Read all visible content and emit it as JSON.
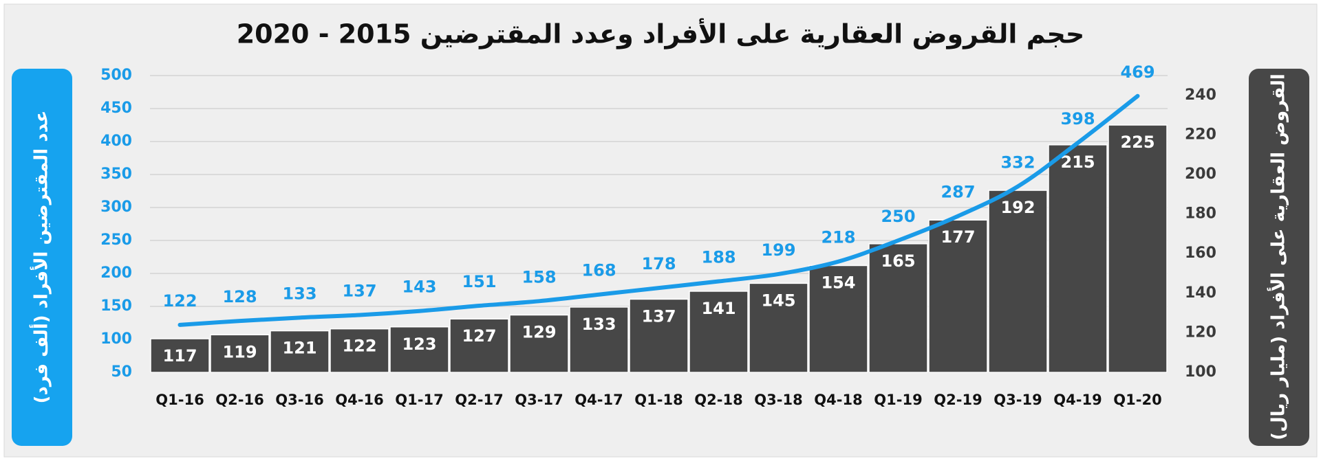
{
  "chart_data": {
    "type": "combo",
    "title": "حجم القروض العقارية على الأفراد وعدد المقترضين 2015 - 2020",
    "y_label": "عدد المقترضين الأفراد (ألف فرد)",
    "y2_label": "القروض العقارية على الأفراد (مليار ريال)",
    "categories": [
      "Q1-16",
      "Q2-16",
      "Q3-16",
      "Q4-16",
      "Q1-17",
      "Q2-17",
      "Q3-17",
      "Q4-17",
      "Q1-18",
      "Q2-18",
      "Q3-18",
      "Q4-18",
      "Q1-19",
      "Q2-19",
      "Q3-19",
      "Q4-19",
      "Q1-20"
    ],
    "series": [
      {
        "type": "bar",
        "axis": "y2",
        "color": "#474747",
        "values": [
          117,
          119,
          121,
          122,
          123,
          127,
          129,
          133,
          137,
          141,
          145,
          154,
          165,
          177,
          192,
          215,
          225
        ]
      },
      {
        "type": "line",
        "color": "#1a9be8",
        "values": [
          122,
          128,
          133,
          137,
          143,
          151,
          158,
          168,
          178,
          188,
          199,
          218,
          250,
          287,
          332,
          398,
          469
        ]
      }
    ],
    "ylim": [
      50,
      500
    ],
    "yticks": [
      50,
      100,
      150,
      200,
      250,
      300,
      350,
      400,
      450,
      500
    ],
    "y2lim": [
      100,
      250
    ],
    "y2ticks": [
      100,
      120,
      140,
      160,
      180,
      200,
      220,
      240
    ],
    "grid": true
  }
}
